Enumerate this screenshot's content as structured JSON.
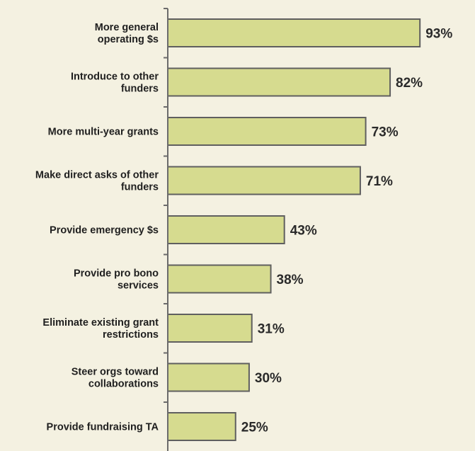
{
  "chart_data": {
    "type": "bar",
    "orientation": "horizontal",
    "categories": [
      [
        "More general",
        "operating $s"
      ],
      [
        "Introduce to other",
        "funders"
      ],
      [
        "More multi-year grants"
      ],
      [
        "Make direct asks of other",
        "funders"
      ],
      [
        "Provide emergency $s"
      ],
      [
        "Provide pro bono",
        "services"
      ],
      [
        "Eliminate existing grant",
        "restrictions"
      ],
      [
        "Steer orgs toward",
        "collaborations"
      ],
      [
        "Provide fundraising TA"
      ]
    ],
    "values": [
      93,
      82,
      73,
      71,
      43,
      38,
      31,
      30,
      25
    ],
    "value_labels": [
      "93%",
      "82%",
      "73%",
      "71%",
      "43%",
      "38%",
      "31%",
      "30%",
      "25%"
    ],
    "xlim": [
      0,
      100
    ],
    "title": "",
    "xlabel": "",
    "ylabel": "",
    "grid": false,
    "legend": "none",
    "colors": {
      "background": "#f4f1e1",
      "bar_fill": "#d6db8f",
      "bar_stroke": "#5f5f5f",
      "axis": "#6b6b6b",
      "label_text": "#1f1f1f",
      "value_text": "#2a2a2a"
    }
  }
}
